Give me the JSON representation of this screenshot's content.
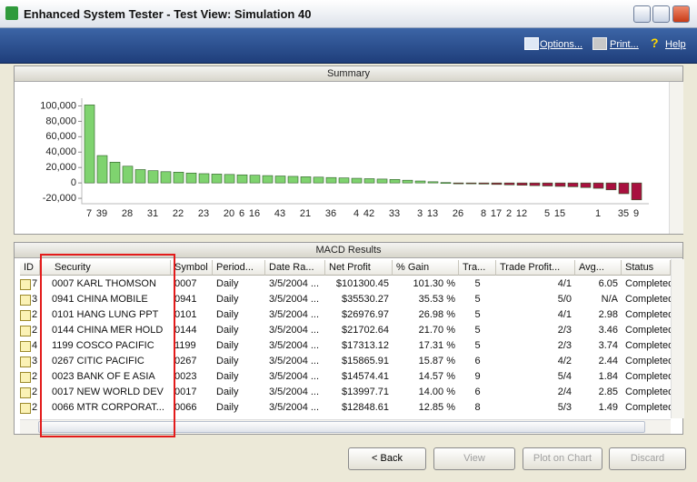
{
  "window": {
    "title": "Enhanced System Tester - Test View: Simulation 40"
  },
  "toolbar": [
    "Options...",
    "Print...",
    "Help"
  ],
  "summary": {
    "title": "Summary",
    "chart_data": {
      "type": "bar",
      "categories": [
        "7",
        "39",
        null,
        "28",
        null,
        "31",
        null,
        "22",
        null,
        "23",
        null,
        "20",
        "6",
        "16",
        null,
        "43",
        null,
        "21",
        null,
        "36",
        null,
        "4",
        "42",
        null,
        "33",
        null,
        "3",
        "13",
        null,
        "26",
        null,
        "8",
        "17",
        "2",
        "12",
        null,
        "5",
        "15",
        null,
        null,
        "1",
        null,
        "35",
        "9"
      ],
      "values": [
        101300,
        35530,
        26976,
        21702,
        17313,
        15865,
        14574,
        13997,
        12848,
        12000,
        11500,
        11000,
        10500,
        10000,
        9500,
        9000,
        8500,
        8000,
        7500,
        7000,
        6500,
        6000,
        5500,
        5000,
        4500,
        3500,
        2500,
        1500,
        500,
        -500,
        -1000,
        -1500,
        -2000,
        -2500,
        -3000,
        -3500,
        -4000,
        -4500,
        -5000,
        -6000,
        -7000,
        -9000,
        -14000,
        -22000
      ],
      "positive_color": "#7fd36f",
      "negative_color": "#a8103f",
      "ylim": [
        -27000,
        110000
      ],
      "yticks": [
        {
          "value": -20000,
          "label": "-20,000"
        },
        0,
        {
          "value": 20000,
          "label": "20,000"
        },
        {
          "value": 40000,
          "label": "40,000"
        },
        {
          "value": 60000,
          "label": "60,000"
        },
        {
          "value": 80000,
          "label": "80,000"
        },
        {
          "value": 100000,
          "label": "100,000"
        }
      ],
      "grid": false
    }
  },
  "results": {
    "title": "MACD Results",
    "columns": [
      "ID",
      "Security",
      "Symbol",
      "Period...",
      "Date Ra...",
      "Net Profit",
      "% Gain",
      "Tra...",
      "Trade Profit...",
      "Avg...",
      "Status"
    ],
    "rows": [
      [
        "7",
        "0007 KARL THOMSON",
        "0007",
        "Daily",
        "3/5/2004 ...",
        "$101300.45",
        "101.30 %",
        "5",
        "4/1",
        "6.05",
        "Completed"
      ],
      [
        "3",
        "0941 CHINA MOBILE",
        "0941",
        "Daily",
        "3/5/2004 ...",
        "$35530.27",
        "35.53 %",
        "5",
        "5/0",
        "N/A",
        "Completed"
      ],
      [
        "2",
        "0101 HANG LUNG PPT",
        "0101",
        "Daily",
        "3/5/2004 ...",
        "$26976.97",
        "26.98 %",
        "5",
        "4/1",
        "2.98",
        "Completed"
      ],
      [
        "2",
        "0144 CHINA MER HOLD",
        "0144",
        "Daily",
        "3/5/2004 ...",
        "$21702.64",
        "21.70 %",
        "5",
        "2/3",
        "3.46",
        "Completed"
      ],
      [
        "4",
        "1199 COSCO PACIFIC",
        "1199",
        "Daily",
        "3/5/2004 ...",
        "$17313.12",
        "17.31 %",
        "5",
        "2/3",
        "3.74",
        "Completed"
      ],
      [
        "3",
        "0267 CITIC PACIFIC",
        "0267",
        "Daily",
        "3/5/2004 ...",
        "$15865.91",
        "15.87 %",
        "6",
        "4/2",
        "2.44",
        "Completed"
      ],
      [
        "2",
        "0023 BANK OF E ASIA",
        "0023",
        "Daily",
        "3/5/2004 ...",
        "$14574.41",
        "14.57 %",
        "9",
        "5/4",
        "1.84",
        "Completed"
      ],
      [
        "2",
        "0017 NEW WORLD DEV",
        "0017",
        "Daily",
        "3/5/2004 ...",
        "$13997.71",
        "14.00 %",
        "6",
        "2/4",
        "2.85",
        "Completed"
      ],
      [
        "2",
        "0066 MTR CORPORAT...",
        "0066",
        "Daily",
        "3/5/2004 ...",
        "$12848.61",
        "12.85 %",
        "8",
        "5/3",
        "1.49",
        "Completed"
      ]
    ]
  },
  "buttons": [
    "< Back",
    "View",
    "Plot on Chart",
    "Discard"
  ]
}
